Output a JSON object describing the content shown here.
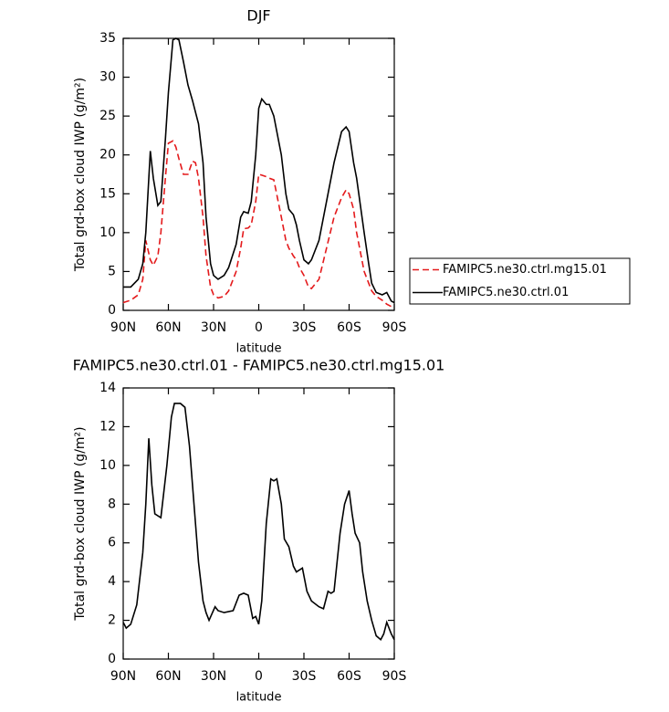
{
  "chart_data": [
    {
      "type": "line",
      "title": "DJF",
      "xlabel": "latitude",
      "ylabel": "Total grd-box cloud IWP (g/m²)",
      "x": [
        90,
        85,
        80,
        77,
        75,
        72,
        70,
        67,
        65,
        62,
        60,
        57,
        55,
        53,
        50,
        47,
        44,
        42,
        40,
        37,
        35,
        32,
        30,
        27,
        23,
        20,
        15,
        12,
        10,
        7,
        5,
        2,
        0,
        -2,
        -5,
        -7,
        -10,
        -15,
        -18,
        -20,
        -23,
        -25,
        -27,
        -30,
        -33,
        -35,
        -40,
        -45,
        -50,
        -55,
        -58,
        -60,
        -63,
        -65,
        -70,
        -73,
        -75,
        -78,
        -82,
        -85,
        -88,
        -90
      ],
      "series": [
        {
          "name": "FAMIPC5.ne30.ctrl.mg15.01",
          "color": "#e41a1c",
          "dashed": true,
          "values": [
            1,
            1.3,
            2,
            4,
            9,
            6.5,
            5.8,
            7,
            10,
            17,
            21.5,
            21.8,
            21,
            19.5,
            17.5,
            17.5,
            19.2,
            19,
            17,
            12,
            7,
            3,
            2,
            1.6,
            1.8,
            2.5,
            5,
            8,
            10.5,
            10.6,
            11,
            14,
            17.5,
            17.4,
            17.2,
            17,
            16.8,
            12,
            9,
            8,
            7,
            6.5,
            5.5,
            4.5,
            3,
            2.8,
            4,
            8,
            12,
            14.5,
            15.5,
            15,
            13,
            10,
            5,
            3.5,
            2.5,
            1.8,
            1.3,
            0.8,
            0.5,
            0.4
          ]
        },
        {
          "name": "FAMIPC5.ne30.ctrl.01",
          "color": "#000000",
          "dashed": false,
          "values": [
            3,
            3,
            4,
            6,
            10,
            20.5,
            17,
            13.5,
            14,
            22,
            28,
            34.8,
            35,
            34.8,
            32,
            29,
            27,
            25.5,
            24,
            19,
            12,
            6,
            4.5,
            4,
            4.5,
            5.5,
            8.5,
            12,
            12.7,
            12.5,
            14,
            20,
            26,
            27.2,
            26.5,
            26.5,
            25,
            20,
            15,
            13,
            12.3,
            11,
            9,
            6.5,
            6,
            6.5,
            9,
            14,
            19,
            23,
            23.6,
            23,
            19,
            17,
            10,
            6,
            3.5,
            2.3,
            2,
            2.3,
            1.2,
            1
          ]
        }
      ],
      "xlim": [
        90,
        -90
      ],
      "xticks": [
        {
          "value": 90,
          "label": "90N"
        },
        {
          "value": 60,
          "label": "60N"
        },
        {
          "value": 30,
          "label": "30N"
        },
        0,
        {
          "value": -30,
          "label": "30S"
        },
        {
          "value": -60,
          "label": "60S"
        },
        {
          "value": -90,
          "label": "90S"
        }
      ],
      "ylim": [
        0,
        35
      ],
      "yticks": [
        0,
        5,
        10,
        15,
        20,
        25,
        30,
        35
      ],
      "legend": "right"
    },
    {
      "type": "line",
      "title": "FAMIPC5.ne30.ctrl.01 - FAMIPC5.ne30.ctrl.mg15.01",
      "xlabel": "latitude",
      "ylabel": "Total grd-box cloud IWP (g/m²)",
      "x": [
        90,
        88,
        85,
        81,
        77,
        75,
        73,
        71,
        69,
        65,
        61,
        58,
        56,
        52,
        49,
        46,
        44,
        42,
        40,
        37,
        35,
        33,
        29,
        27,
        23,
        17,
        13,
        10,
        7,
        4,
        2,
        0,
        -2,
        -5,
        -8,
        -10,
        -12,
        -15,
        -17,
        -20,
        -23,
        -25,
        -27,
        -29,
        -32,
        -35,
        -40,
        -43,
        -46,
        -48,
        -50,
        -52,
        -54,
        -57,
        -60,
        -62,
        -64,
        -67,
        -69,
        -72,
        -75,
        -78,
        -81,
        -83,
        -85,
        -88,
        -90
      ],
      "series": [
        {
          "color": "#000000",
          "dashed": false,
          "values": [
            1.9,
            1.6,
            1.8,
            2.8,
            5.5,
            8,
            11.4,
            9,
            7.5,
            7.3,
            10,
            12.5,
            13.2,
            13.2,
            13,
            11,
            9,
            7,
            5,
            3,
            2.4,
            2,
            2.7,
            2.5,
            2.4,
            2.5,
            3.3,
            3.4,
            3.3,
            2.1,
            2.2,
            1.8,
            3,
            7,
            9.3,
            9.2,
            9.3,
            8,
            6.2,
            5.8,
            4.8,
            4.5,
            4.6,
            4.7,
            3.5,
            3,
            2.7,
            2.6,
            3.5,
            3.4,
            3.5,
            5,
            6.5,
            8,
            8.7,
            7.5,
            6.5,
            6,
            4.5,
            3,
            2,
            1.2,
            1,
            1.3,
            1.9,
            1.3,
            1
          ]
        }
      ],
      "xlim": [
        90,
        -90
      ],
      "xticks": [
        {
          "value": 90,
          "label": "90N"
        },
        {
          "value": 60,
          "label": "60N"
        },
        {
          "value": 30,
          "label": "30N"
        },
        0,
        {
          "value": -30,
          "label": "30S"
        },
        {
          "value": -60,
          "label": "60S"
        },
        {
          "value": -90,
          "label": "90S"
        }
      ],
      "ylim": [
        0,
        14
      ],
      "yticks": [
        0,
        2,
        4,
        6,
        8,
        10,
        12,
        14
      ]
    }
  ]
}
